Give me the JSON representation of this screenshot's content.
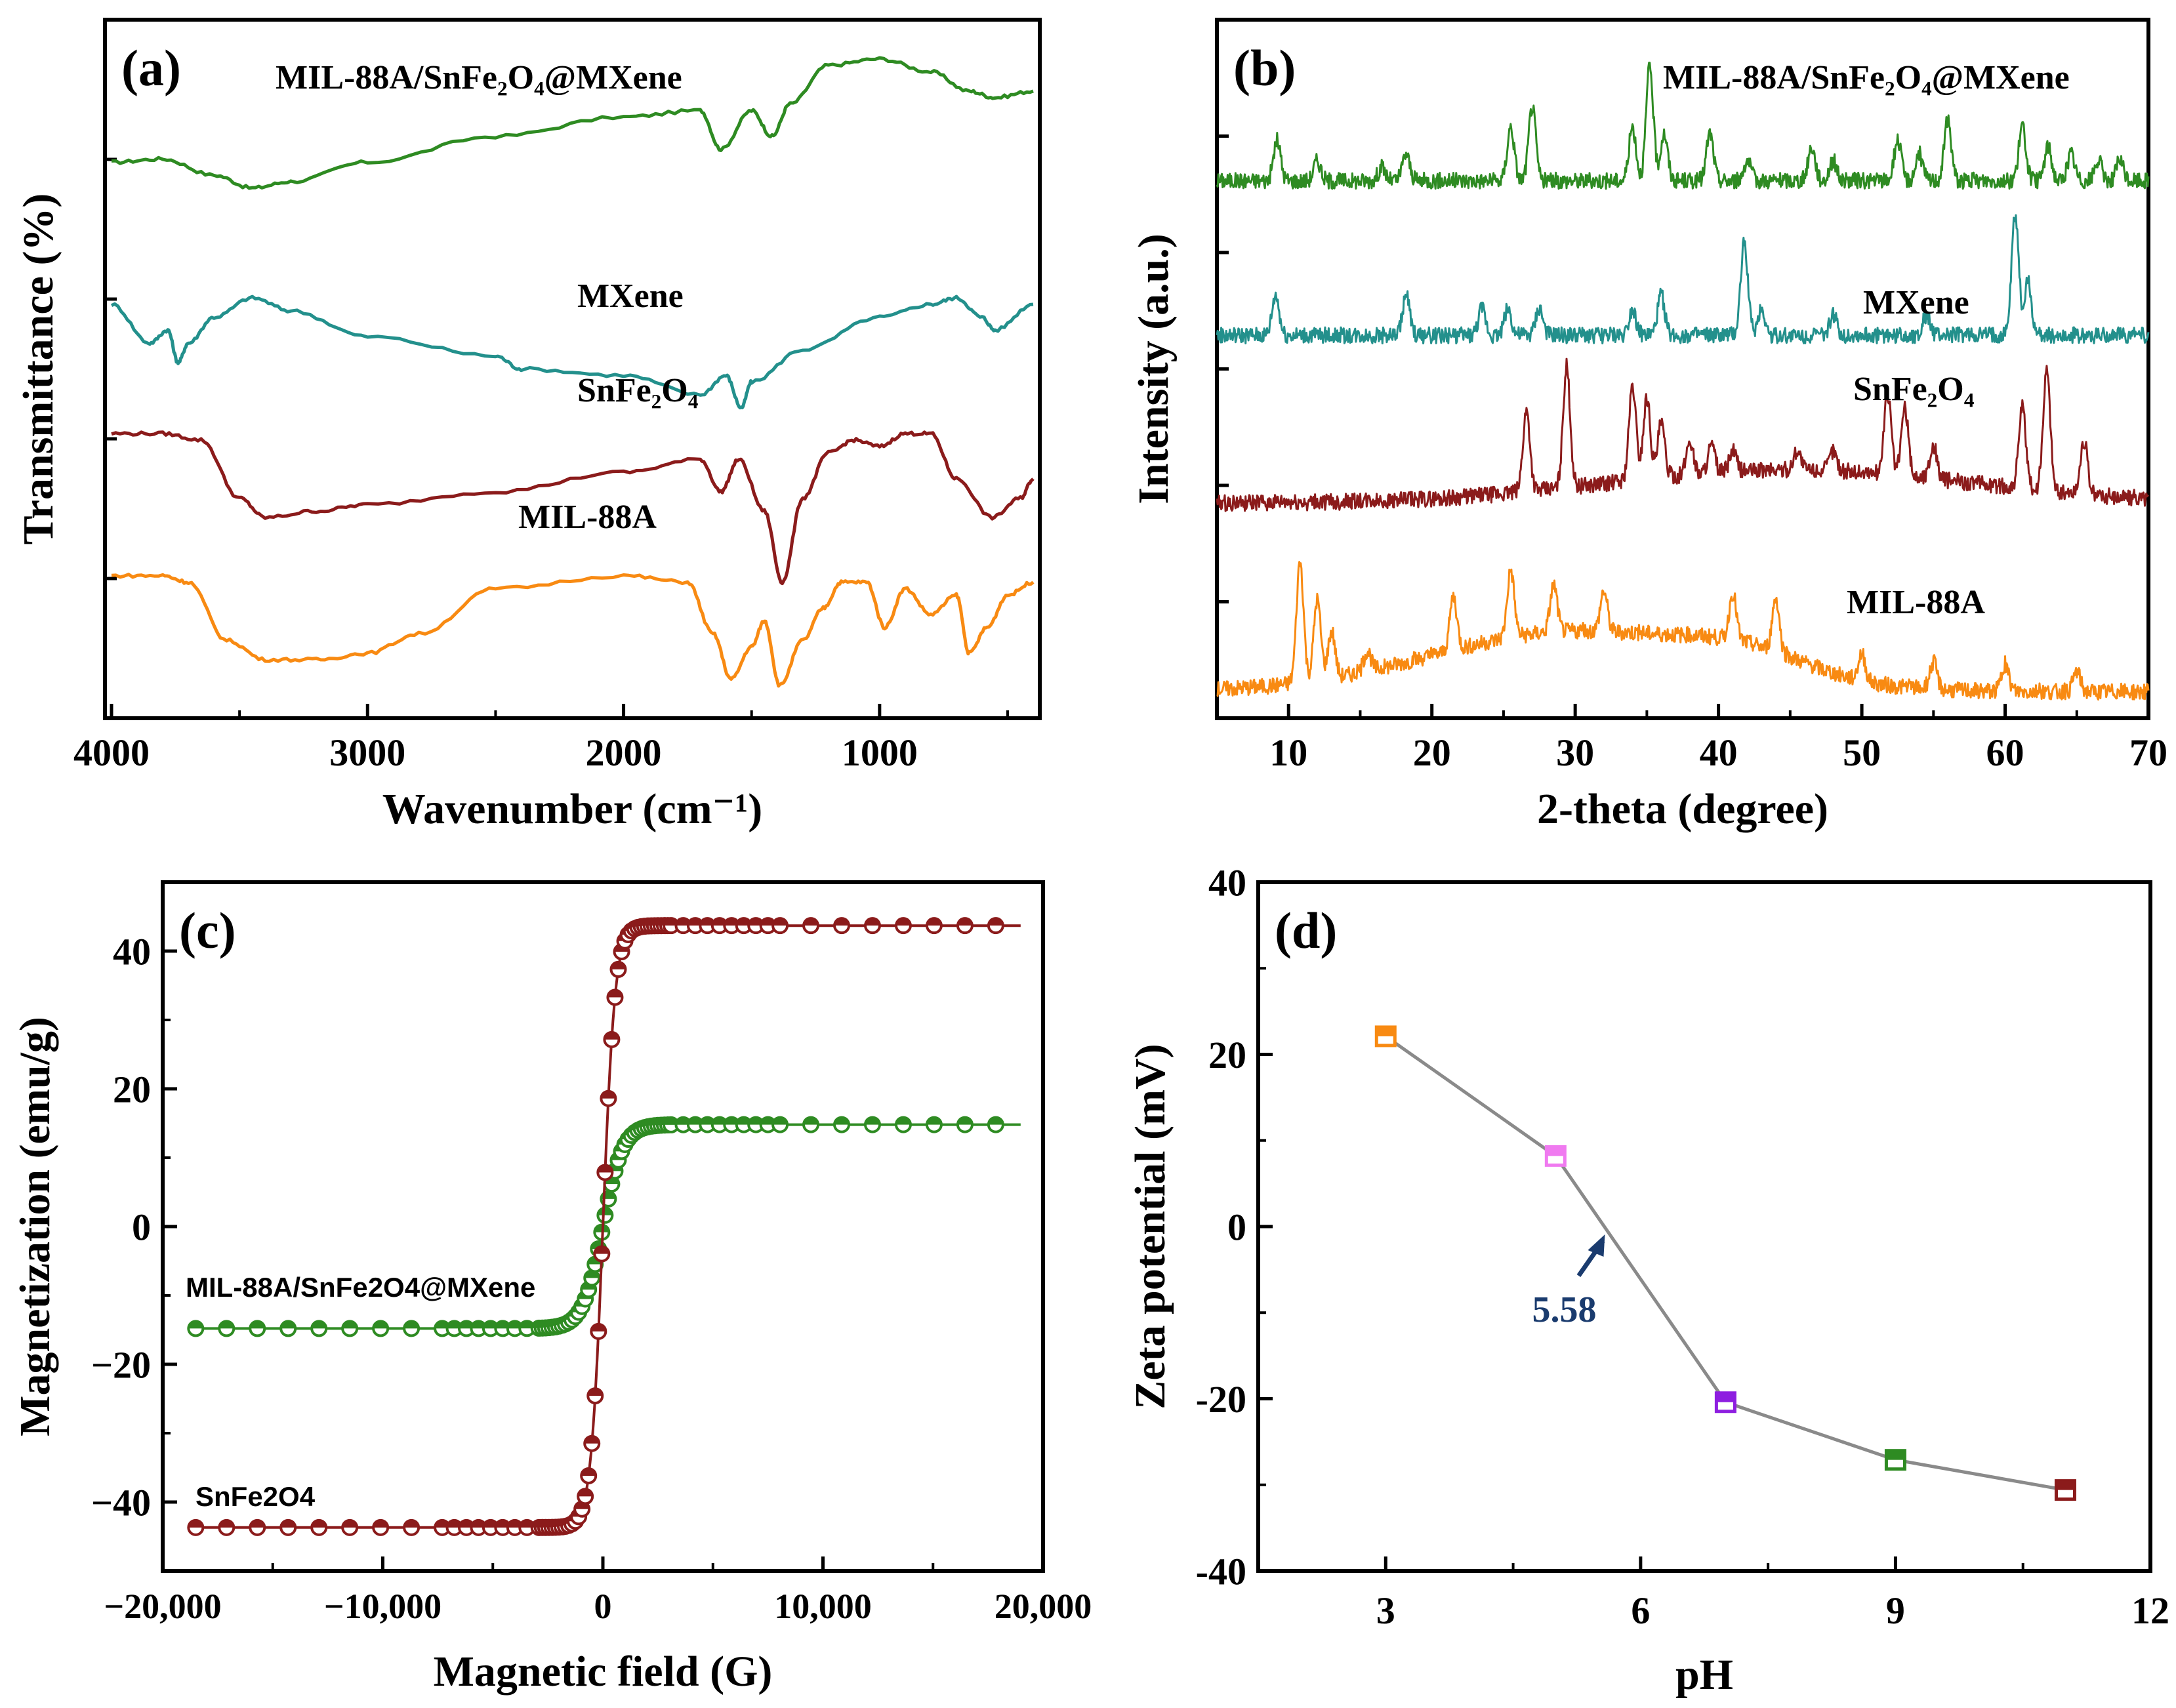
{
  "figure": {
    "panels": [
      "(a)",
      "(b)",
      "(c)",
      "(d)"
    ]
  },
  "chart_data": [
    {
      "id": "a",
      "type": "line",
      "panel_label": "(a)",
      "title": "",
      "xlabel": "Wavenumber (cm⁻¹)",
      "ylabel": "Transmittance (%)",
      "xlim": [
        4000,
        400
      ],
      "x_reversed": true,
      "xticks": [
        4000,
        3000,
        2000,
        1000
      ],
      "xtick_labels": [
        "4000",
        "3000",
        "2000",
        "1000"
      ],
      "y_ticks_unlabeled": 4,
      "series": [
        {
          "name": "MIL-88A/SnFe₂O₄@MXene",
          "color": "#2e8b22",
          "x": [
            4000,
            3800,
            3600,
            3450,
            3300,
            3000,
            2500,
            2000,
            1700,
            1620,
            1500,
            1420,
            1350,
            1200,
            1000,
            800,
            650,
            550,
            400
          ],
          "y": [
            82,
            82.5,
            80,
            78,
            79,
            82,
            86,
            89,
            90,
            84,
            90,
            86,
            91,
            97,
            98,
            96,
            93,
            92,
            93
          ]
        },
        {
          "name": "MXene",
          "color": "#23908c",
          "x": [
            4000,
            3850,
            3780,
            3740,
            3700,
            3600,
            3450,
            3300,
            3000,
            2500,
            2400,
            2000,
            1700,
            1600,
            1540,
            1500,
            1300,
            1000,
            800,
            700,
            600,
            550,
            400
          ],
          "y": [
            60,
            54,
            56,
            51,
            54,
            58,
            61,
            59,
            55,
            52,
            50,
            49,
            46,
            49,
            44,
            48,
            53,
            58,
            60,
            61,
            58,
            56,
            60
          ]
        },
        {
          "name": "SnFe₂O₄",
          "color": "#8b1b1b",
          "x": [
            4000,
            3800,
            3650,
            3500,
            3400,
            3200,
            3000,
            2500,
            2000,
            1700,
            1620,
            1550,
            1450,
            1380,
            1300,
            1200,
            1100,
            1000,
            900,
            800,
            700,
            560,
            450,
            400
          ],
          "y": [
            40,
            40,
            39,
            30,
            27,
            28,
            29,
            31,
            34,
            36,
            31,
            36,
            28,
            17,
            30,
            37,
            39,
            38,
            40,
            40,
            33,
            27,
            30,
            33
          ]
        },
        {
          "name": "MIL-88A",
          "color": "#f88a12",
          "x": [
            4000,
            3800,
            3700,
            3550,
            3400,
            3200,
            3000,
            2800,
            2500,
            2000,
            1750,
            1650,
            1580,
            1500,
            1450,
            1390,
            1300,
            1220,
            1150,
            1050,
            980,
            900,
            800,
            700,
            650,
            580,
            500,
            400
          ],
          "y": [
            18,
            18,
            17,
            8,
            5,
            5,
            6,
            9,
            16,
            18,
            17,
            9,
            2,
            7,
            11,
            1,
            8,
            13,
            17,
            17,
            10,
            16,
            12,
            15,
            6,
            10,
            15,
            17
          ]
        }
      ]
    },
    {
      "id": "b",
      "type": "line",
      "panel_label": "(b)",
      "title": "",
      "xlabel": "2-theta (degree)",
      "ylabel": "Intensity (a.u.)",
      "xlim": [
        5,
        70
      ],
      "xticks": [
        10,
        20,
        30,
        40,
        50,
        60,
        70
      ],
      "xtick_labels": [
        "10",
        "20",
        "30",
        "40",
        "50",
        "60",
        "70"
      ],
      "y_ticks_unlabeled": 5,
      "series": [
        {
          "name": "MIL-88A/SnFe₂O₄@MXene",
          "color": "#2e8b22",
          "offset": 78,
          "peaks": [
            [
              9.2,
              6
            ],
            [
              12.0,
              3
            ],
            [
              16.5,
              2
            ],
            [
              18.2,
              4
            ],
            [
              25.5,
              8
            ],
            [
              27.0,
              11
            ],
            [
              34.0,
              8
            ],
            [
              35.2,
              17
            ],
            [
              36.2,
              7
            ],
            [
              39.4,
              7
            ],
            [
              42.0,
              3
            ],
            [
              46.5,
              5
            ],
            [
              48.0,
              3
            ],
            [
              52.5,
              6
            ],
            [
              54.0,
              4
            ],
            [
              56.0,
              9
            ],
            [
              61.2,
              8
            ],
            [
              63.0,
              5
            ],
            [
              64.6,
              4
            ],
            [
              66.5,
              3
            ],
            [
              68.0,
              3
            ]
          ]
        },
        {
          "name": "MXene",
          "color": "#23908c",
          "offset": 55,
          "peaks": [
            [
              9.1,
              6
            ],
            [
              18.2,
              6
            ],
            [
              23.5,
              4
            ],
            [
              25.3,
              4
            ],
            [
              27.5,
              4
            ],
            [
              34.0,
              4
            ],
            [
              36.0,
              6
            ],
            [
              41.8,
              14
            ],
            [
              43.0,
              4
            ],
            [
              48.0,
              3
            ],
            [
              54.5,
              3
            ],
            [
              60.7,
              18
            ],
            [
              61.6,
              8
            ]
          ]
        },
        {
          "name": "SnFe₂O₄",
          "color": "#8b1b1b",
          "offset": 30,
          "peaks": [
            [
              26.6,
              12
            ],
            [
              29.4,
              18
            ],
            [
              34.0,
              14
            ],
            [
              35.0,
              12
            ],
            [
              36.0,
              8
            ],
            [
              38.0,
              5
            ],
            [
              39.5,
              4
            ],
            [
              41.0,
              3
            ],
            [
              45.5,
              3
            ],
            [
              48.0,
              3
            ],
            [
              51.8,
              12
            ],
            [
              53.0,
              10
            ],
            [
              55.0,
              5
            ],
            [
              61.2,
              12
            ],
            [
              62.9,
              18
            ],
            [
              65.5,
              8
            ]
          ]
        },
        {
          "name": "MIL-88A",
          "color": "#f88a12",
          "offset": 2,
          "peaks": [
            [
              10.8,
              18
            ],
            [
              12.0,
              12
            ],
            [
              13.0,
              7
            ],
            [
              15.5,
              3
            ],
            [
              21.5,
              8
            ],
            [
              25.5,
              10
            ],
            [
              28.5,
              7
            ],
            [
              32.0,
              6
            ],
            [
              41.0,
              7
            ],
            [
              44.0,
              8
            ],
            [
              50.0,
              4
            ],
            [
              55.0,
              4
            ],
            [
              60.0,
              4
            ],
            [
              65.0,
              3
            ]
          ]
        }
      ]
    },
    {
      "id": "c",
      "type": "line",
      "panel_label": "(c)",
      "title": "",
      "xlabel": "Magnetic field (G)",
      "ylabel": "Magnetization (emu/g)",
      "xlim": [
        -20000,
        20000
      ],
      "ylim": [
        -50,
        50
      ],
      "xticks": [
        -20000,
        -10000,
        0,
        10000,
        20000
      ],
      "xtick_labels": [
        "−20,000",
        "−10,000",
        "0",
        "10,000",
        "20,000"
      ],
      "yticks": [
        -40,
        -20,
        0,
        20,
        40
      ],
      "ytick_labels": [
        "−40",
        "−20",
        "0",
        "20",
        "40"
      ],
      "series": [
        {
          "name": "MIL-88A/SnFe₂O₄@MXene",
          "label_text": "MIL-88A/SnFe2O4@MXene",
          "color": "#2e8b22",
          "Ms": 14.8,
          "h0": 900,
          "x_range": [
            -18500,
            19000
          ]
        },
        {
          "name": "SnFe₂O₄",
          "label_text": "SnFe2O4",
          "color": "#8b1b1b",
          "Ms": 43.7,
          "h0": 550,
          "x_range": [
            -18500,
            19000
          ]
        }
      ]
    },
    {
      "id": "d",
      "type": "line",
      "panel_label": "(d)",
      "title": "",
      "xlabel": "pH",
      "ylabel": "Zeta potential (mV)",
      "xlim": [
        1.5,
        12
      ],
      "ylim": [
        -40,
        40
      ],
      "xticks": [
        3,
        6,
        9,
        12
      ],
      "xtick_labels": [
        "3",
        "6",
        "9",
        "12"
      ],
      "yticks": [
        -40,
        -20,
        0,
        20,
        40
      ],
      "ytick_labels": [
        "-40",
        "-20",
        "0",
        "20",
        "40"
      ],
      "x": [
        3,
        5,
        7,
        9,
        11
      ],
      "y": [
        22.1,
        8.2,
        -20.4,
        -27.1,
        -30.6
      ],
      "marker_colors": [
        "#f88a12",
        "#f07af0",
        "#8e1ee0",
        "#2e8b22",
        "#8b1b1b"
      ],
      "line_color": "#8a8a8a",
      "annotation": {
        "text": "5.58",
        "x": 5.58,
        "y": 0,
        "color": "#1a3b6e"
      }
    }
  ]
}
